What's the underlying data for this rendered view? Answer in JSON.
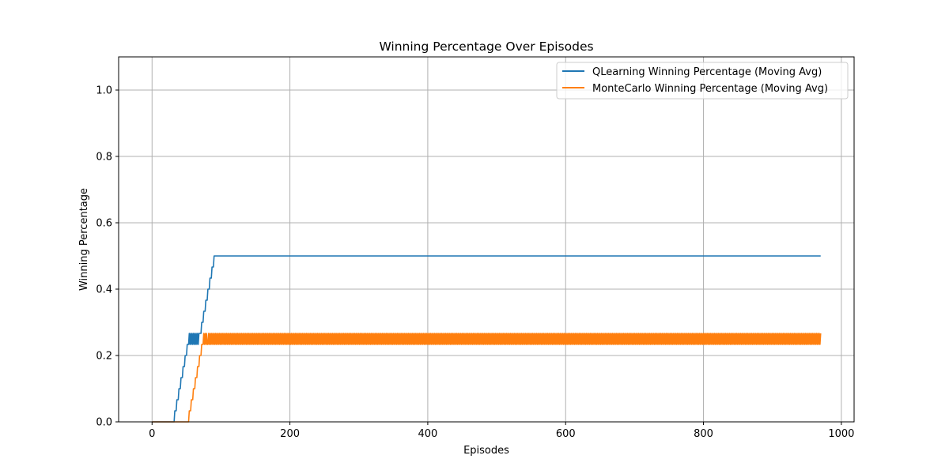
{
  "chart_data": {
    "type": "line",
    "title": "Winning Percentage Over Episodes",
    "xlabel": "Episodes",
    "ylabel": "Winning Percentage",
    "xlim": [
      -48.5,
      1018.5
    ],
    "ylim": [
      0,
      1.1
    ],
    "x_ticks": [
      0,
      200,
      400,
      600,
      800,
      1000
    ],
    "y_ticks": [
      0.0,
      0.2,
      0.4,
      0.6,
      0.8,
      1.0
    ],
    "x_tick_labels": [
      "0",
      "200",
      "400",
      "600",
      "800",
      "1000"
    ],
    "y_tick_labels": [
      "0.0",
      "0.2",
      "0.4",
      "0.6",
      "0.8",
      "1.0"
    ],
    "grid": true,
    "legend_position": "top-right",
    "series": [
      {
        "name": "QLearning Winning Percentage (Moving Avg)",
        "color": "#1f77b4",
        "values": [
          0,
          0,
          0,
          0,
          0,
          0,
          0,
          0,
          0,
          0,
          0,
          0,
          0,
          0,
          0,
          0,
          0,
          0,
          0,
          0,
          0,
          0,
          0,
          0,
          0,
          0,
          0,
          0,
          0,
          0,
          0,
          0,
          0,
          0.0333,
          0.0333,
          0.0333,
          0.0667,
          0.0667,
          0.0667,
          0.1,
          0.1,
          0.1,
          0.1333,
          0.1333,
          0.1333,
          0.1667,
          0.1667,
          0.1667,
          0.2,
          0.2,
          0.2,
          0.2333,
          0.2333,
          0.2333,
          0.2667,
          0.2333,
          0.2667,
          0.2333,
          0.2667,
          0.2333,
          0.2667,
          0.2333,
          0.2667,
          0.2333,
          0.2667,
          0.2333,
          0.2667,
          0.2333,
          0.2667,
          0.2667,
          0.2667,
          0.2667,
          0.3,
          0.3,
          0.3,
          0.3333,
          0.3333,
          0.3333,
          0.3667,
          0.3667,
          0.3667,
          0.4,
          0.4,
          0.4,
          0.4333,
          0.4333,
          0.4333,
          0.4667,
          0.4667,
          0.4667,
          0.5,
          0.5,
          0.5,
          0.5,
          0.5,
          0.5,
          0.5,
          0.5,
          0.5,
          0.5,
          0.5
        ]
      },
      {
        "name": "MonteCarlo Winning Percentage (Moving Avg)",
        "color": "#ff7f0e",
        "values": [
          0,
          0,
          0,
          0,
          0,
          0,
          0,
          0,
          0,
          0,
          0,
          0,
          0,
          0,
          0,
          0,
          0,
          0,
          0,
          0,
          0,
          0,
          0,
          0,
          0,
          0,
          0,
          0,
          0,
          0,
          0,
          0,
          0,
          0,
          0,
          0,
          0,
          0,
          0,
          0,
          0,
          0,
          0,
          0,
          0,
          0,
          0,
          0,
          0,
          0,
          0,
          0,
          0,
          0,
          0.0333,
          0.0333,
          0.0333,
          0.0667,
          0.0667,
          0.0667,
          0.1,
          0.1,
          0.1,
          0.1333,
          0.1333,
          0.1333,
          0.1667,
          0.1667,
          0.1667,
          0.2,
          0.2,
          0.2,
          0.2333,
          0.2333,
          0.2333,
          0.2667,
          0.2333,
          0.2667,
          0.2333,
          0.2667,
          0.2333
        ]
      }
    ],
    "x_end": 970,
    "tail_note_values": {
      "qlearning_plateau": 0.5,
      "montecarlo_oscillation": [
        0.2333,
        0.2667
      ]
    }
  }
}
